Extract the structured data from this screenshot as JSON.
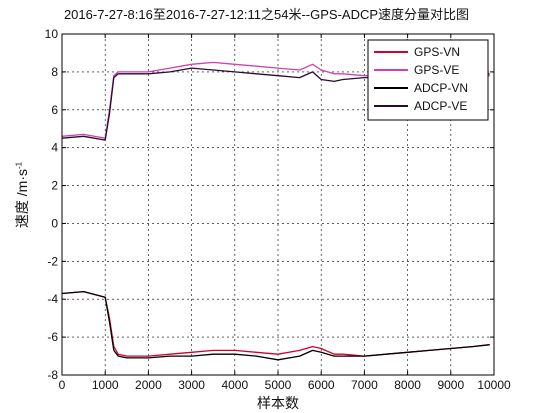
{
  "chart_data": {
    "type": "line",
    "title": "2016-7-27-8:16至2016-7-27-12:11之54米--GPS-ADCP速度分量对比图",
    "xlabel": "样本数",
    "ylabel": {
      "main": "速度 /m·s",
      "superscript": "-1"
    },
    "xlim": [
      0,
      10000
    ],
    "ylim": [
      -8,
      10
    ],
    "xticks": [
      0,
      1000,
      2000,
      3000,
      4000,
      5000,
      6000,
      7000,
      8000,
      9000,
      10000
    ],
    "yticks": [
      -8,
      -6,
      -4,
      -2,
      0,
      2,
      4,
      6,
      8,
      10
    ],
    "grid": true,
    "legend_position": "top-right",
    "series": [
      {
        "name": "GPS-VN",
        "color": "#d4002a",
        "x": [
          0,
          500,
          1000,
          1100,
          1200,
          1300,
          1500,
          2000,
          2500,
          3000,
          3500,
          4000,
          4500,
          5000,
          5500,
          5800,
          6000,
          6300,
          6500,
          7000,
          7500,
          8000,
          8500,
          9000,
          9500,
          9900
        ],
        "y": [
          -3.7,
          -3.6,
          -3.9,
          -5.0,
          -6.5,
          -6.9,
          -7.0,
          -7.0,
          -6.9,
          -6.8,
          -6.7,
          -6.7,
          -6.8,
          -6.9,
          -6.7,
          -6.5,
          -6.6,
          -6.9,
          -6.9,
          -7.0,
          -6.9,
          -6.8,
          -6.7,
          -6.6,
          -6.5,
          -6.4
        ]
      },
      {
        "name": "GPS-VE",
        "color": "#d040b0",
        "x": [
          0,
          500,
          1000,
          1100,
          1200,
          1300,
          1500,
          2000,
          2500,
          3000,
          3500,
          4000,
          4500,
          5000,
          5500,
          5800,
          6000,
          6300,
          6500,
          7000,
          7500,
          8000,
          8500,
          9000,
          9500,
          9900
        ],
        "y": [
          4.6,
          4.7,
          4.5,
          6.0,
          7.8,
          8.0,
          8.0,
          8.0,
          8.2,
          8.4,
          8.5,
          8.4,
          8.3,
          8.2,
          8.1,
          8.4,
          8.1,
          7.9,
          7.9,
          7.8,
          7.8,
          7.8,
          7.8,
          7.7,
          7.7,
          7.8
        ]
      },
      {
        "name": "ADCP-VN",
        "color": "#000000",
        "x": [
          0,
          500,
          1000,
          1100,
          1200,
          1300,
          1500,
          2000,
          2500,
          3000,
          3500,
          4000,
          4500,
          5000,
          5500,
          5800,
          6000,
          6300,
          6500,
          7000,
          7500,
          8000,
          8500,
          9000,
          9500,
          9900
        ],
        "y": [
          -3.7,
          -3.6,
          -3.9,
          -5.2,
          -6.7,
          -7.0,
          -7.1,
          -7.1,
          -7.0,
          -7.0,
          -6.9,
          -6.9,
          -7.0,
          -7.2,
          -7.0,
          -6.7,
          -6.8,
          -7.0,
          -7.0,
          -7.0,
          -6.9,
          -6.8,
          -6.7,
          -6.6,
          -6.5,
          -6.4
        ]
      },
      {
        "name": "ADCP-VE",
        "color": "#2a0a30",
        "x": [
          0,
          500,
          1000,
          1100,
          1200,
          1300,
          1500,
          2000,
          2500,
          3000,
          3500,
          4000,
          4500,
          5000,
          5500,
          5800,
          6000,
          6300,
          6500,
          7000,
          7500,
          8000,
          8500,
          9000,
          9500,
          9900
        ],
        "y": [
          4.5,
          4.6,
          4.4,
          5.8,
          7.7,
          7.9,
          7.9,
          7.9,
          8.0,
          8.2,
          8.1,
          8.0,
          7.9,
          7.8,
          7.7,
          8.0,
          7.6,
          7.5,
          7.6,
          7.7,
          7.7,
          7.6,
          7.7,
          7.7,
          7.7,
          7.9
        ]
      }
    ]
  }
}
